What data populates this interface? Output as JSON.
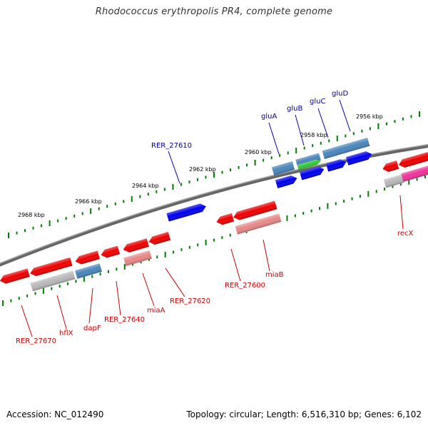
{
  "header": {
    "title": "Rhodococcus erythropolis PR4, complete genome"
  },
  "footer": {
    "accession": "Accession: NC_012490",
    "summary": "Topology: circular; Length: 6,516,310 bp; Genes: 6,102"
  },
  "colors": {
    "forward_strand": "#0000ee",
    "reverse_strand": "#ee0000",
    "pseudo_gene": "#e88888",
    "gray_gene": "#b8b8b8",
    "steel_gene": "#4a86bc",
    "green_gene": "#33cc33",
    "magenta_gene": "#ee3399",
    "backbone": "#888888",
    "tick": "#008000"
  },
  "kbp_labels": [
    "2956 kbp",
    "2958 kbp",
    "2960 kbp",
    "2962 kbp",
    "2964 kbp",
    "2966 kbp",
    "2968 kbp"
  ],
  "gene_labels": {
    "forward": [
      "gluD",
      "gluC",
      "gluB",
      "gluA",
      "RER_27610"
    ],
    "reverse": [
      "recX",
      "miaB",
      "RER_27600",
      "RER_27620",
      "miaA",
      "RER_27640",
      "dapF",
      "hflX",
      "RER_27670"
    ]
  }
}
